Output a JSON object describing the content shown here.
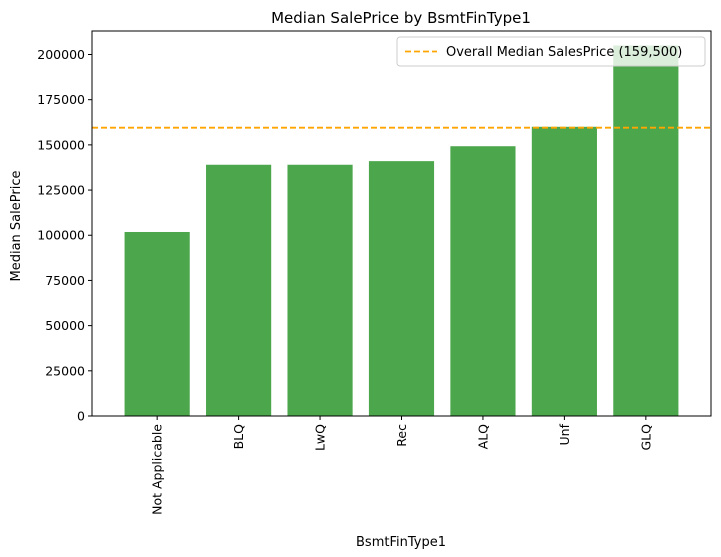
{
  "chart_data": {
    "type": "bar",
    "title": "Median SalePrice by BsmtFinType1",
    "xlabel": "BsmtFinType1",
    "ylabel": "Median SalePrice",
    "categories": [
      "Not Applicable",
      "BLQ",
      "LwQ",
      "Rec",
      "ALQ",
      "Unf",
      "GLQ"
    ],
    "values": [
      101800,
      139000,
      139000,
      141000,
      149250,
      160000,
      205000
    ],
    "ylim": [
      0,
      213000
    ],
    "yticks": [
      0,
      25000,
      50000,
      75000,
      100000,
      125000,
      150000,
      175000,
      200000
    ],
    "reference_line": {
      "value": 159500,
      "label": "Overall Median SalesPrice (159,500)",
      "color": "#ffa500",
      "style": "dashed"
    },
    "bar_color": "#4ca64c",
    "legend_position": "top-right",
    "grid": false
  }
}
